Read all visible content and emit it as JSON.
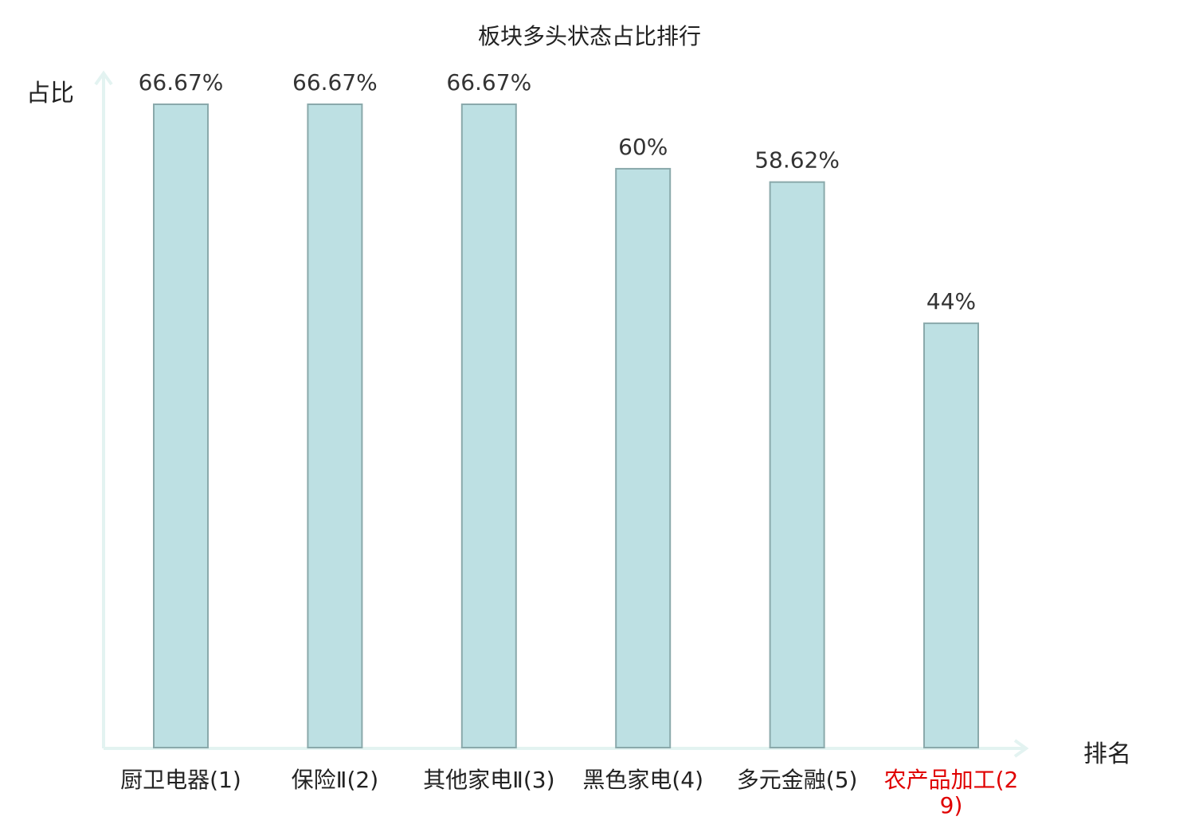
{
  "chart_data": {
    "type": "bar",
    "title": "板块多头状态占比排行",
    "ylabel": "占比",
    "xlabel": "排名",
    "ylim": [
      0,
      70
    ],
    "grid": false,
    "categories": [
      {
        "name": "厨卫电器",
        "rank": "(1)",
        "highlight": false
      },
      {
        "name": "保险Ⅱ",
        "rank": "(2)",
        "highlight": false
      },
      {
        "name": "其他家电Ⅱ",
        "rank": "(3)",
        "highlight": false
      },
      {
        "name": "黑色家电",
        "rank": "(4)",
        "highlight": false
      },
      {
        "name": "多元金融",
        "rank": "(5)",
        "highlight": false
      },
      {
        "name": "农产品加工",
        "rank": "(29)",
        "highlight": true
      }
    ],
    "values": [
      66.67,
      66.67,
      66.67,
      60,
      58.62,
      44
    ],
    "value_labels": [
      "66.67%",
      "66.67%",
      "66.67%",
      "60%",
      "58.62%",
      "44%"
    ],
    "colors": {
      "bar_fill": "#bde0e3",
      "bar_stroke": "#8aa9ab",
      "axis": "#e3f3f1",
      "highlight_text": "#e00000",
      "text": "#222222"
    }
  }
}
